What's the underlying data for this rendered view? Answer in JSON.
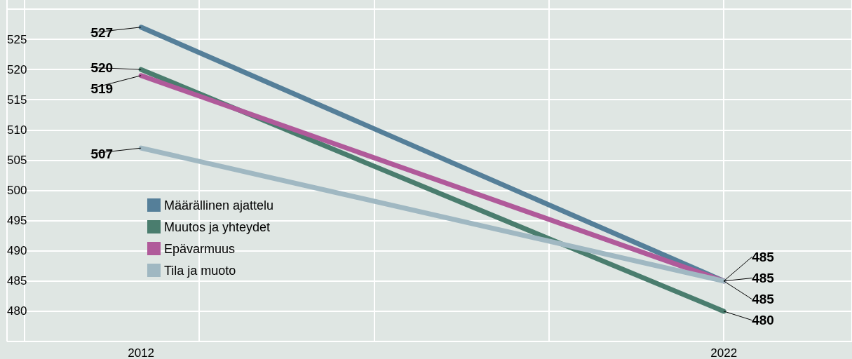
{
  "chart_data": {
    "type": "line",
    "x": [
      2012,
      2022
    ],
    "series": [
      {
        "name": "Määrällinen ajattelu",
        "color": "#557f99",
        "values": [
          527,
          485
        ]
      },
      {
        "name": "Muutos ja yhteydet",
        "color": "#4a7d6e",
        "values": [
          520,
          480
        ]
      },
      {
        "name": "Epävarmuus",
        "color": "#b05a9a",
        "values": [
          519,
          485
        ]
      },
      {
        "name": "Tila ja muoto",
        "color": "#a0b8c2",
        "values": [
          507,
          485
        ]
      }
    ],
    "xlim": [
      2009.7,
      2024.2
    ],
    "xticks": [
      2012,
      2022
    ],
    "ylim": [
      475,
      531.5
    ],
    "yticks": [
      {
        "value": 475,
        "label": null
      },
      480,
      485,
      490,
      495,
      500,
      505,
      510,
      515,
      520,
      525,
      {
        "value": 530,
        "label": null
      }
    ],
    "grid": true,
    "legend": "left",
    "marker": "none",
    "line_style": "solid",
    "data_labels": true
  }
}
